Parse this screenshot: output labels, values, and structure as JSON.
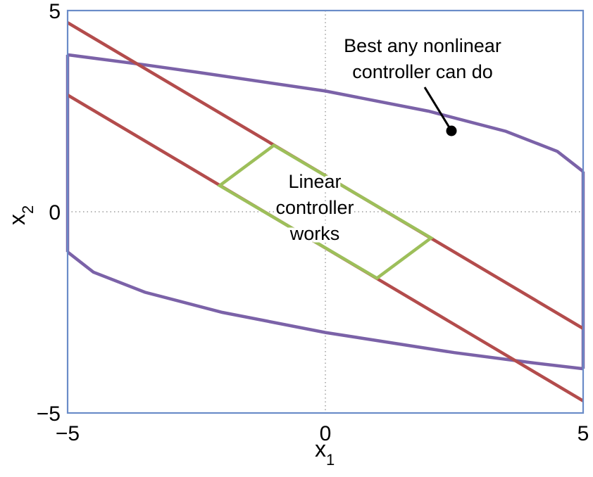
{
  "chart_data": {
    "type": "line",
    "title": "",
    "xlabel": "x",
    "xlabel_subscript": "1",
    "ylabel": "x",
    "ylabel_subscript": "2",
    "xlim": [
      -5,
      5
    ],
    "ylim": [
      -5,
      5
    ],
    "x_ticks": [
      -5,
      0,
      5
    ],
    "y_ticks": [
      -5,
      0,
      5
    ],
    "x_tick_labels": [
      "−5",
      "0",
      "5"
    ],
    "y_tick_labels": [
      "−5",
      "0",
      "5"
    ],
    "grid": "dotted lines at x = 0 and y = 0",
    "colors": {
      "frame": "#6a8cc8",
      "nonlinear_region": "#7b62a8",
      "linear_band": "#b34c4c",
      "linear_region": "#9dbf5a",
      "grid": "#888888"
    },
    "series": [
      {
        "role": "nonlinear-upper",
        "color": "#7b62a8",
        "points": [
          [
            -5,
            3.9
          ],
          [
            -3.5,
            3.65
          ],
          [
            -2.5,
            3.47
          ],
          [
            0,
            3.0
          ],
          [
            2,
            2.5
          ],
          [
            3.5,
            2.0
          ],
          [
            4.5,
            1.5
          ],
          [
            5,
            1.0
          ]
        ]
      },
      {
        "role": "nonlinear-lower",
        "color": "#7b62a8",
        "points": [
          [
            -5,
            -1.0
          ],
          [
            -4.5,
            -1.5
          ],
          [
            -3.5,
            -2.0
          ],
          [
            -2,
            -2.5
          ],
          [
            0,
            -3.0
          ],
          [
            2.5,
            -3.5
          ],
          [
            4,
            -3.75
          ],
          [
            5,
            -3.9
          ]
        ]
      },
      {
        "role": "nonlinear-left-edge",
        "color": "#7b62a8",
        "points": [
          [
            -5,
            3.9
          ],
          [
            -5,
            -1.0
          ]
        ]
      },
      {
        "role": "nonlinear-right-edge",
        "color": "#7b62a8",
        "points": [
          [
            5,
            1.0
          ],
          [
            5,
            -3.9
          ]
        ]
      },
      {
        "role": "linear-band-upper",
        "color": "#b34c4c",
        "points": [
          [
            -5,
            4.7
          ],
          [
            5,
            -2.9
          ]
        ]
      },
      {
        "role": "linear-band-lower",
        "color": "#b34c4c",
        "points": [
          [
            -5,
            2.9
          ],
          [
            5,
            -4.7
          ]
        ]
      },
      {
        "role": "linear-region",
        "color": "#9dbf5a",
        "closed": true,
        "points": [
          [
            -2.05,
            0.65
          ],
          [
            -1.0,
            1.65
          ],
          [
            2.05,
            -0.65
          ],
          [
            1.0,
            -1.65
          ]
        ]
      }
    ],
    "annotations": [
      {
        "role": "nonlinear-label",
        "lines": [
          "Best any nonlinear",
          "controller can do"
        ],
        "pointer_from": [
          4.05,
          3.35
        ],
        "pointer_to": [
          5.1,
          2.05
        ]
      },
      {
        "role": "linear-label",
        "lines": [
          "Linear",
          "controller",
          "works"
        ]
      }
    ]
  }
}
